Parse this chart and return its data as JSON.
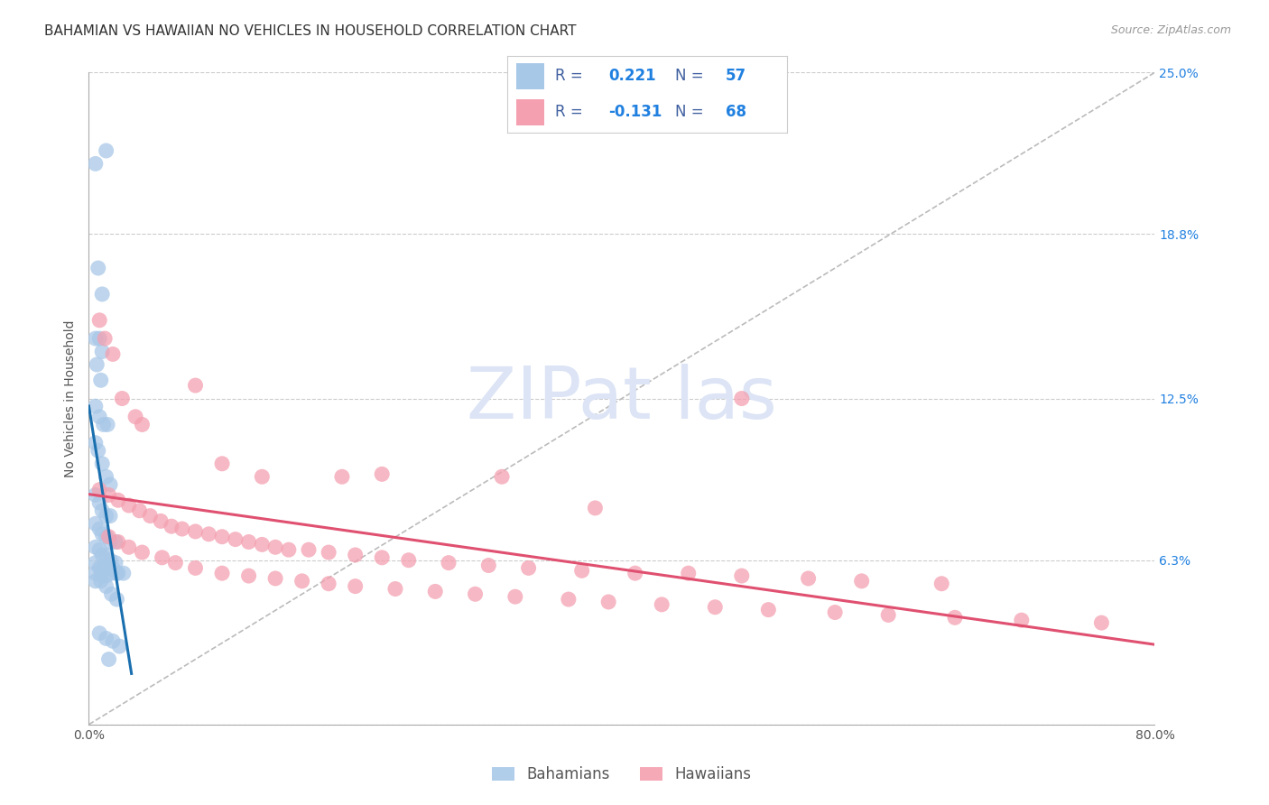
{
  "title": "BAHAMIAN VS HAWAIIAN NO VEHICLES IN HOUSEHOLD CORRELATION CHART",
  "source": "Source: ZipAtlas.com",
  "ylabel": "No Vehicles in Household",
  "xlim": [
    0.0,
    0.8
  ],
  "ylim": [
    0.0,
    0.25
  ],
  "ytick_vals": [
    0.0,
    0.063,
    0.125,
    0.188,
    0.25
  ],
  "ytick_labels": [
    "",
    "6.3%",
    "12.5%",
    "18.8%",
    "25.0%"
  ],
  "xtick_vals": [
    0.0,
    0.1,
    0.2,
    0.3,
    0.4,
    0.5,
    0.6,
    0.7,
    0.8
  ],
  "xtick_labels": [
    "0.0%",
    "",
    "",
    "",
    "",
    "",
    "",
    "",
    "80.0%"
  ],
  "bahamian_color": "#a8c8e8",
  "hawaiian_color": "#f4a0b0",
  "bahamian_R": 0.221,
  "bahamian_N": 57,
  "hawaiian_R": -0.131,
  "hawaiian_N": 68,
  "bahamian_line_color": "#1a6faf",
  "hawaiian_line_color": "#e05070",
  "ref_line_color": "#bbbbbb",
  "grid_color": "#cccccc",
  "background_color": "#ffffff",
  "title_fontsize": 11,
  "axis_label_fontsize": 10,
  "tick_fontsize": 10,
  "legend_label_color": "#4060a0",
  "legend_value_color": "#2080e0",
  "watermark_color": "#dce4f5"
}
